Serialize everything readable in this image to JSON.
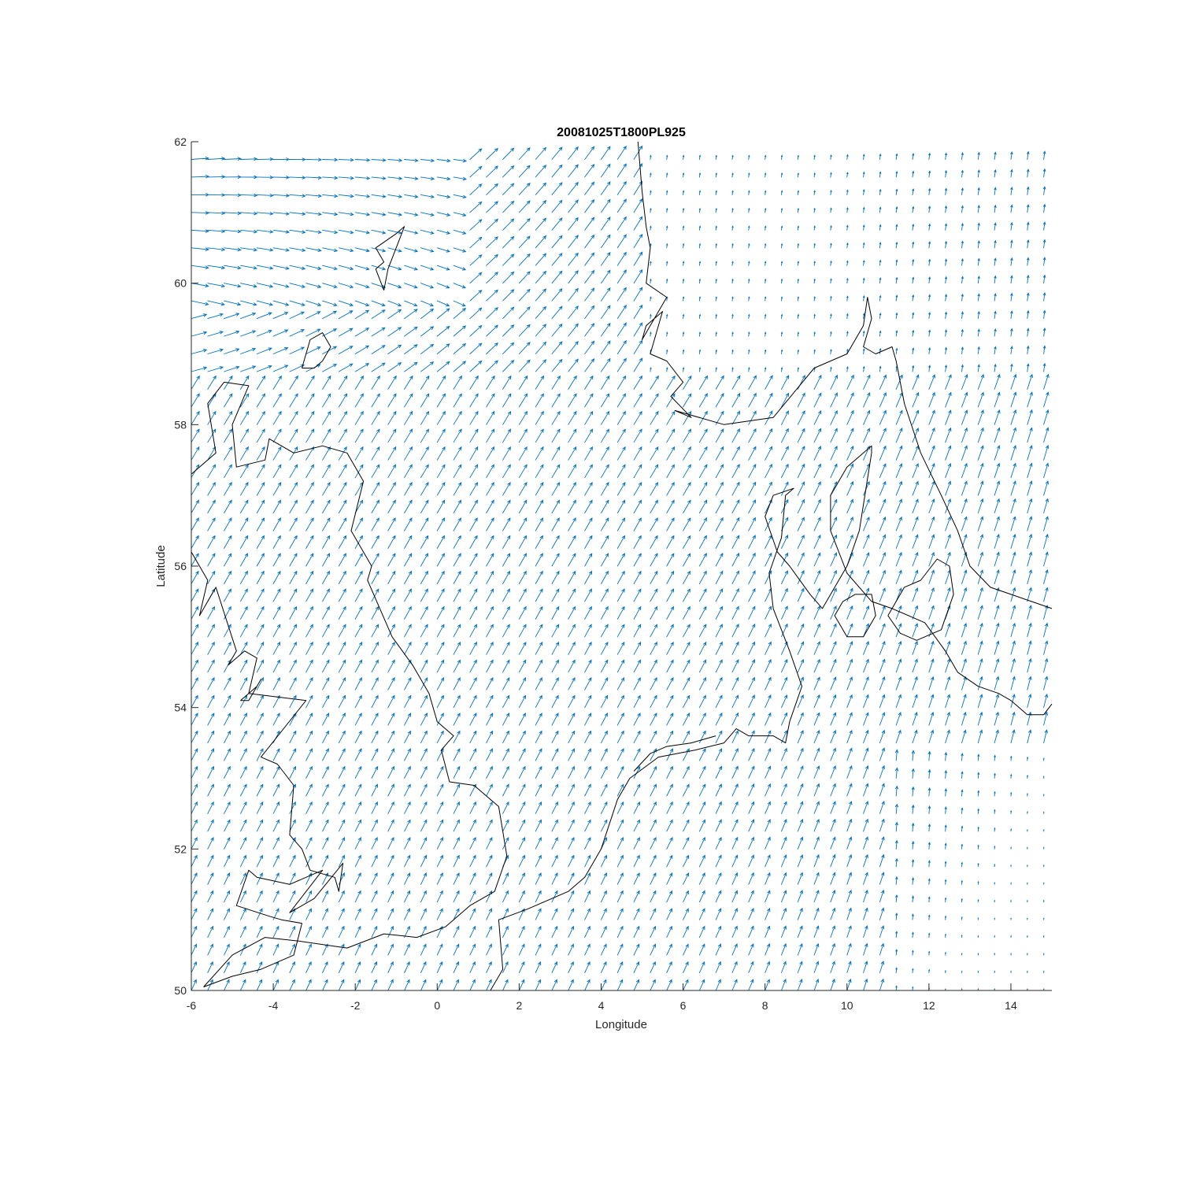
{
  "chart_data": {
    "type": "quiver",
    "title": "20081025T1800PL925",
    "xlabel": "Longitude",
    "ylabel": "Latitude",
    "xlim": [
      -6,
      15
    ],
    "ylim": [
      50,
      62
    ],
    "xticks": [
      -6,
      -4,
      -2,
      0,
      2,
      4,
      6,
      8,
      10,
      12,
      14
    ],
    "yticks": [
      50,
      52,
      54,
      56,
      58,
      60,
      62
    ],
    "xtick_labels": [
      "-6",
      "-4",
      "-2",
      "0",
      "2",
      "4",
      "6",
      "8",
      "10",
      "12",
      "14"
    ],
    "ytick_labels": [
      "50",
      "52",
      "54",
      "56",
      "58",
      "60",
      "62"
    ],
    "grid": false,
    "legend": "none",
    "colors": {
      "vectors": "#0072BD",
      "coastline": "#000000",
      "axes": "#262626"
    },
    "vector_grid": {
      "lon_start": -6,
      "lon_end": 14.8,
      "lon_step": 0.4,
      "lat_start": 50,
      "lat_end": 61.8,
      "lat_step": 0.25
    },
    "vector_field_summary": [
      {
        "region": "north-west (lon -6 to 0, lat 60-62)",
        "direction": "east-south-east",
        "relative_magnitude": "strong"
      },
      {
        "region": "central and south (lon -6 to 12, lat 50-59)",
        "direction": "north-north-east",
        "relative_magnitude": "moderate"
      },
      {
        "region": "north-east (lon 5 to 15, lat 59-62)",
        "direction": "north",
        "relative_magnitude": "weak"
      },
      {
        "region": "south-east (lon 12 to 15, lat 50-53)",
        "direction": "north",
        "relative_magnitude": "very weak"
      }
    ],
    "coastlines": [
      {
        "name": "Great Britain",
        "lon": [
          -5.7,
          -5.0,
          -4.2,
          -3.4,
          -2.2,
          -1.3,
          -0.5,
          0.2,
          0.8,
          1.4,
          1.7,
          1.5,
          0.9,
          0.3,
          0.1,
          0.4,
          0.0,
          -0.2,
          -0.6,
          -1.1,
          -1.7,
          -1.6,
          -2.1,
          -1.8,
          -2.2,
          -2.8,
          -3.5,
          -4.1,
          -4.2,
          -4.9,
          -5.0,
          -4.6,
          -5.2,
          -5.6,
          -5.4,
          -6.0,
          -6.0,
          -6.2,
          -5.6,
          -5.8,
          -5.4,
          -4.9,
          -5.1,
          -4.7,
          -4.4,
          -4.6,
          -3.2,
          -4.3,
          -3.9,
          -3.5,
          -3.6,
          -3.3,
          -3.1,
          -2.5,
          -2.4,
          -2.3,
          -3.0,
          -3.6,
          -2.8,
          -3.2,
          -3.6,
          -4.4,
          -4.6,
          -4.9,
          -4.1,
          -3.8,
          -3.3,
          -3.5,
          -4.3,
          -5.0,
          -5.7
        ],
        "lat": [
          50.05,
          50.5,
          50.75,
          50.7,
          50.6,
          50.8,
          50.75,
          50.9,
          51.2,
          51.4,
          51.9,
          52.6,
          52.9,
          52.95,
          53.4,
          53.6,
          53.8,
          54.2,
          54.6,
          55.0,
          55.8,
          56.0,
          56.5,
          57.2,
          57.6,
          57.7,
          57.6,
          57.8,
          57.5,
          57.4,
          58.0,
          58.55,
          58.6,
          58.3,
          57.6,
          57.3,
          56.6,
          56.2,
          55.8,
          55.3,
          55.7,
          54.8,
          54.6,
          54.8,
          54.7,
          54.2,
          54.1,
          53.3,
          53.2,
          52.9,
          52.2,
          52.0,
          51.7,
          51.6,
          51.4,
          51.8,
          51.3,
          51.1,
          51.7,
          51.6,
          51.5,
          51.6,
          51.7,
          51.2,
          51.05,
          51.0,
          50.95,
          50.5,
          50.3,
          50.2,
          50.05
        ]
      },
      {
        "name": "Continental coast",
        "lon": [
          1.3,
          1.6,
          1.5,
          2.2,
          3.2,
          3.6,
          4.0,
          4.4,
          4.7,
          5.4,
          6.3,
          7.0,
          7.3,
          7.6,
          8.2,
          8.5,
          8.6,
          8.9,
          8.6,
          8.2,
          8.1,
          8.4,
          8.5,
          8.7,
          8.2,
          8.0,
          8.3,
          8.6,
          9.1,
          9.4,
          10.0,
          10.3,
          10.6,
          10.6,
          10.0,
          9.6,
          9.6,
          10.0,
          10.6,
          11.1,
          11.9,
          12.4,
          12.7,
          13.2,
          13.7,
          14.0,
          14.4,
          14.8,
          15.0
        ],
        "lat": [
          50.0,
          50.3,
          51.0,
          51.15,
          51.4,
          51.6,
          52.0,
          52.7,
          53.0,
          53.3,
          53.4,
          53.5,
          53.7,
          53.6,
          53.6,
          53.5,
          53.8,
          54.3,
          54.8,
          55.4,
          55.9,
          56.4,
          57.0,
          57.1,
          57.0,
          56.7,
          56.2,
          56.0,
          55.6,
          55.4,
          56.0,
          56.5,
          57.6,
          57.7,
          57.4,
          57.0,
          56.5,
          55.9,
          55.5,
          55.4,
          55.2,
          54.8,
          54.5,
          54.3,
          54.2,
          54.1,
          53.9,
          53.9,
          54.05
        ]
      },
      {
        "name": "Norway",
        "lon": [
          4.9,
          5.0,
          5.1,
          5.2,
          5.1,
          5.6,
          5.0,
          5.1,
          5.5,
          5.2,
          5.6,
          6.0,
          5.7,
          6.2,
          5.8,
          7.0,
          8.2,
          9.2,
          10.0,
          10.4,
          10.5,
          10.6,
          10.4,
          10.7,
          11.1,
          11.2,
          11.4,
          11.8,
          12.3,
          12.7,
          13.0,
          13.5,
          14.0,
          14.5,
          15.0
        ],
        "lat": [
          62.0,
          61.3,
          60.8,
          60.5,
          60.0,
          59.8,
          59.2,
          59.4,
          59.6,
          59.0,
          58.9,
          58.6,
          58.4,
          58.1,
          58.2,
          58.0,
          58.1,
          58.8,
          59.0,
          59.4,
          59.8,
          59.5,
          59.1,
          59.0,
          59.1,
          58.9,
          58.3,
          57.6,
          57.0,
          56.5,
          56.0,
          55.7,
          55.6,
          55.5,
          55.4
        ]
      },
      {
        "name": "Shetland",
        "lon": [
          -1.3,
          -1.5,
          -1.3,
          -1.5,
          -1.0,
          -0.8,
          -1.0,
          -1.2,
          -1.3
        ],
        "lat": [
          59.9,
          60.2,
          60.3,
          60.5,
          60.7,
          60.8,
          60.5,
          60.2,
          59.9
        ]
      },
      {
        "name": "Orkney",
        "lon": [
          -3.3,
          -3.0,
          -2.8,
          -2.6,
          -2.8,
          -3.1,
          -3.3
        ],
        "lat": [
          58.8,
          58.8,
          58.9,
          59.1,
          59.3,
          59.2,
          58.8
        ]
      },
      {
        "name": "Zealand",
        "lon": [
          11.0,
          11.3,
          11.7,
          12.3,
          12.6,
          12.5,
          12.2,
          11.8,
          11.4,
          11.0
        ],
        "lat": [
          55.3,
          55.05,
          54.95,
          55.1,
          55.6,
          56.0,
          56.1,
          55.8,
          55.7,
          55.3
        ]
      },
      {
        "name": "Funen",
        "lon": [
          9.7,
          10.0,
          10.4,
          10.7,
          10.6,
          10.2,
          9.9,
          9.7
        ],
        "lat": [
          55.3,
          55.0,
          55.0,
          55.3,
          55.6,
          55.6,
          55.5,
          55.3
        ]
      },
      {
        "name": "Isle of Man",
        "lon": [
          -4.8,
          -4.4,
          -4.3,
          -4.6,
          -4.8
        ],
        "lat": [
          54.1,
          54.3,
          54.4,
          54.1,
          54.1
        ]
      },
      {
        "name": "Frisian Islands",
        "lon": [
          4.8,
          5.2,
          5.6,
          6.2,
          6.8
        ],
        "lat": [
          53.1,
          53.35,
          53.45,
          53.5,
          53.6
        ]
      }
    ]
  }
}
